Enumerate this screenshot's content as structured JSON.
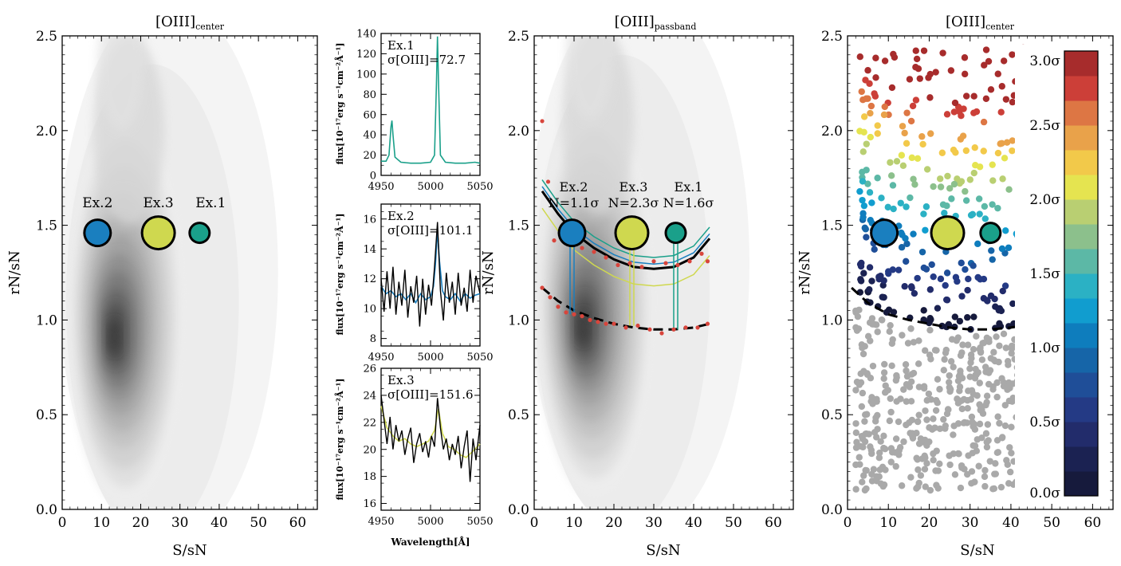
{
  "chart_data": [
    {
      "type": "contour",
      "title_main": "[OIII]",
      "title_sub": "center",
      "xlabel": "S/sN",
      "ylabel": "rN/sN",
      "xlim": [
        0,
        65
      ],
      "ylim": [
        0,
        2.5
      ],
      "xticks": [
        "0",
        "10",
        "20",
        "30",
        "40",
        "50",
        "60"
      ],
      "yticks": [
        "0.0",
        "0.5",
        "1.0",
        "1.5",
        "2.0",
        "2.5"
      ],
      "density_peak": {
        "x": 13,
        "y": 0.9
      },
      "examples": [
        {
          "label": "Ex.2",
          "x": 9,
          "y": 1.46,
          "size": "medium",
          "color": "#1a7fbf"
        },
        {
          "label": "Ex.3",
          "x": 24.5,
          "y": 1.46,
          "size": "large",
          "color": "#cfd84f"
        },
        {
          "label": "Ex.1",
          "x": 35,
          "y": 1.46,
          "size": "small",
          "color": "#1aa08a"
        }
      ]
    },
    {
      "type": "line",
      "panel": "spectrum-1",
      "label": "Ex.1",
      "sigma_label": "σ[OIII]=72.7",
      "ylabel": "flux[10⁻¹⁷erg s⁻¹cm⁻²Å⁻¹]",
      "xlim": [
        4950,
        5050
      ],
      "ylim": [
        0,
        140
      ],
      "xticks": [
        "4950",
        "5000",
        "5050"
      ],
      "yticks": [
        "0",
        "20",
        "40",
        "60",
        "80",
        "100",
        "120",
        "140"
      ],
      "series": [
        {
          "color": "#1aa08a",
          "x": [
            4950,
            4955,
            4958,
            4960,
            4961,
            4962,
            4964,
            4970,
            4980,
            4990,
            5000,
            5004,
            5006,
            5007,
            5008,
            5010,
            5015,
            5025,
            5035,
            5045,
            5050
          ],
          "values": [
            14,
            14,
            20,
            48,
            54,
            40,
            18,
            13,
            12,
            12,
            13,
            20,
            90,
            137,
            95,
            20,
            13,
            12,
            12,
            13,
            12
          ]
        }
      ]
    },
    {
      "type": "line",
      "panel": "spectrum-2",
      "label": "Ex.2",
      "sigma_label": "σ[OIII]=101.1",
      "ylabel": "flux[10⁻¹⁷erg s⁻¹cm⁻²Å⁻¹]",
      "xlim": [
        4950,
        5050
      ],
      "ylim": [
        7.5,
        17
      ],
      "xticks": [
        "4950",
        "5000",
        "5050"
      ],
      "yticks": [
        "8",
        "10",
        "12",
        "14",
        "16"
      ],
      "series": [
        {
          "color": "#1a7fbf",
          "x": [
            4950,
            4955,
            4960,
            4965,
            4970,
            4975,
            4980,
            4985,
            4990,
            4995,
            5000,
            5003,
            5005,
            5007,
            5009,
            5012,
            5015,
            5020,
            5025,
            5030,
            5035,
            5040,
            5045,
            5050
          ],
          "values": [
            11.5,
            11,
            11.2,
            10.8,
            11,
            10.6,
            11,
            10.4,
            11,
            10.6,
            10.8,
            11.5,
            13,
            15.2,
            13.2,
            11.2,
            10.8,
            10.6,
            11,
            10.5,
            11,
            10.7,
            10.9,
            11
          ]
        },
        {
          "color": "#000000",
          "x": [
            4950,
            4953,
            4956,
            4959,
            4962,
            4965,
            4968,
            4971,
            4974,
            4977,
            4980,
            4983,
            4986,
            4989,
            4992,
            4995,
            4998,
            5001,
            5004,
            5007,
            5010,
            5013,
            5016,
            5019,
            5022,
            5025,
            5028,
            5031,
            5034,
            5037,
            5040,
            5043,
            5046,
            5050
          ],
          "values": [
            12,
            9.8,
            12.5,
            10,
            12.8,
            9.6,
            11.8,
            10.2,
            12.6,
            9.4,
            11.5,
            10.4,
            12.2,
            8.8,
            12,
            9.6,
            11.6,
            10.2,
            12.8,
            15.8,
            11.2,
            9.2,
            12.4,
            10.4,
            11.8,
            9.6,
            12.4,
            10.2,
            11.4,
            9.8,
            12.6,
            10.4,
            12.2,
            11
          ]
        }
      ]
    },
    {
      "type": "line",
      "panel": "spectrum-3",
      "label": "Ex.3",
      "sigma_label": "σ[OIII]=151.6",
      "ylabel": "flux[10⁻¹⁷erg s⁻¹cm⁻²Å⁻¹]",
      "xlabel": "Wavelength[Å]",
      "xlim": [
        4950,
        5050
      ],
      "ylim": [
        15.5,
        26
      ],
      "xticks": [
        "4950",
        "5000",
        "5050"
      ],
      "yticks": [
        "16",
        "18",
        "20",
        "22",
        "24",
        "26"
      ],
      "series": [
        {
          "color": "#cfd84f",
          "x": [
            4950,
            4956,
            4962,
            4968,
            4974,
            4980,
            4986,
            4992,
            4998,
            5004,
            5008,
            5012,
            5018,
            5024,
            5030,
            5036,
            5042,
            5050
          ],
          "values": [
            23.2,
            21.6,
            21,
            20.6,
            20.8,
            20.4,
            20.2,
            20.4,
            20.6,
            21.4,
            23,
            21.2,
            20.2,
            20,
            19.6,
            19.4,
            19.8,
            20.4
          ]
        },
        {
          "color": "#000000",
          "x": [
            4950,
            4953,
            4956,
            4959,
            4962,
            4965,
            4968,
            4971,
            4974,
            4977,
            4980,
            4983,
            4986,
            4989,
            4992,
            4995,
            4998,
            5001,
            5004,
            5007,
            5010,
            5013,
            5016,
            5019,
            5022,
            5025,
            5028,
            5031,
            5034,
            5037,
            5040,
            5043,
            5046,
            5050
          ],
          "values": [
            24,
            22.2,
            20.4,
            22.4,
            20,
            21.8,
            20.6,
            21.4,
            19.6,
            20.8,
            21.6,
            19,
            20.4,
            21.2,
            19.8,
            20.6,
            19.4,
            21,
            20.2,
            23.8,
            21.6,
            20,
            20.8,
            19.2,
            20.4,
            19.6,
            21,
            18.6,
            20.2,
            21.4,
            17.6,
            20.8,
            19.2,
            21.8
          ]
        }
      ]
    },
    {
      "type": "contour",
      "title_main": "[OIII]",
      "title_sub": "passband",
      "xlabel": "S/sN",
      "ylabel": "rN/sN",
      "xlim": [
        0,
        65
      ],
      "ylim": [
        0,
        2.5
      ],
      "xticks": [
        "0",
        "10",
        "20",
        "30",
        "40",
        "50",
        "60"
      ],
      "yticks": [
        "0.0",
        "0.5",
        "1.0",
        "1.5",
        "2.0",
        "2.5"
      ],
      "density_peak": {
        "x": 12,
        "y": 0.95
      },
      "examples": [
        {
          "label": "Ex.2",
          "line2": "N=1.1σ",
          "x": 9.5,
          "y": 1.46,
          "size": "medium",
          "color": "#1a7fbf"
        },
        {
          "label": "Ex.3",
          "line2": "N=2.3σ",
          "x": 24.5,
          "y": 1.46,
          "size": "large",
          "color": "#cfd84f"
        },
        {
          "label": "Ex.1",
          "line2": "N=1.6σ",
          "x": 35.5,
          "y": 1.46,
          "size": "small",
          "color": "#1aa08a"
        }
      ],
      "lower_curve": {
        "x": [
          2,
          6,
          10,
          15,
          20,
          25,
          30,
          35,
          40,
          44
        ],
        "values": [
          1.17,
          1.1,
          1.05,
          1.01,
          0.98,
          0.96,
          0.95,
          0.95,
          0.96,
          0.98
        ]
      },
      "upper_curve": {
        "x": [
          2,
          6,
          10,
          15,
          20,
          25,
          30,
          35,
          40,
          44
        ],
        "values": [
          1.68,
          1.56,
          1.46,
          1.38,
          1.32,
          1.28,
          1.27,
          1.28,
          1.33,
          1.43
        ]
      },
      "red_points_lower": {
        "x": [
          2,
          4,
          6,
          8,
          10,
          12,
          14,
          16,
          18,
          20,
          23,
          26,
          29,
          32,
          35,
          38,
          41,
          43.5
        ],
        "values": [
          1.17,
          1.12,
          1.07,
          1.04,
          1.03,
          1.02,
          1.0,
          0.99,
          0.98,
          0.98,
          0.96,
          0.97,
          0.95,
          0.93,
          0.95,
          0.96,
          0.96,
          0.98
        ]
      },
      "red_points_upper": {
        "x": [
          2,
          3.5,
          5,
          8,
          12,
          15,
          18,
          21,
          24,
          27,
          30,
          33,
          36,
          39,
          42,
          43.5
        ],
        "values": [
          2.05,
          1.73,
          1.42,
          1.45,
          1.38,
          1.36,
          1.33,
          1.29,
          1.3,
          1.28,
          1.31,
          1.3,
          1.29,
          1.31,
          1.35,
          1.31
        ]
      }
    },
    {
      "type": "scatter",
      "title_main": "[OIII]",
      "title_sub": "center",
      "xlabel": "S/sN",
      "ylabel": "rN/sN",
      "xlim": [
        0,
        65
      ],
      "ylim": [
        0,
        2.5
      ],
      "xticks": [
        "0",
        "10",
        "20",
        "30",
        "40",
        "50",
        "60"
      ],
      "yticks": [
        "0.0",
        "0.5",
        "1.0",
        "1.5",
        "2.0",
        "2.5"
      ],
      "colorbar": {
        "labels": [
          "0.0σ",
          "0.5σ",
          "1.0σ",
          "1.5σ",
          "2.0σ",
          "2.5σ",
          "3.0σ"
        ],
        "colors": [
          "#161a3c",
          "#1b2252",
          "#222c6b",
          "#243a85",
          "#1f4e98",
          "#1665a8",
          "#0e7dbd",
          "#119dcf",
          "#2bb1c4",
          "#5cb8a6",
          "#8cc08c",
          "#b9cf72",
          "#e5e450",
          "#f2c94a",
          "#e9a24a",
          "#dd7644",
          "#cc3f38",
          "#a72c2c"
        ]
      },
      "examples": [
        {
          "x": 9,
          "y": 1.46,
          "size": "medium",
          "color": "#1a7fbf"
        },
        {
          "x": 24.5,
          "y": 1.46,
          "size": "large",
          "color": "#cfd84f"
        },
        {
          "x": 35,
          "y": 1.46,
          "size": "small",
          "color": "#1aa08a"
        }
      ],
      "boundary_curve": {
        "x": [
          1,
          5,
          10,
          15,
          20,
          25,
          30,
          35,
          40,
          43
        ],
        "values": [
          1.17,
          1.09,
          1.03,
          1.0,
          0.98,
          0.96,
          0.95,
          0.95,
          0.96,
          0.97
        ]
      }
    }
  ]
}
